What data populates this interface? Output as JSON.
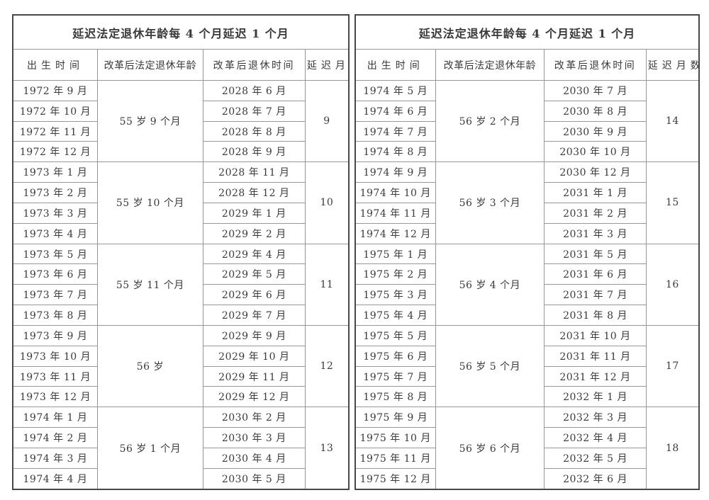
{
  "colors": {
    "background": "#ffffff",
    "outer_border": "#484848",
    "inner_border": "#979797",
    "text": "#3a3a3a"
  },
  "tables": [
    {
      "title": "延迟法定退休年龄每 4 个月延迟 1 个月",
      "columns": [
        "出生时间",
        "改革后法定退休年龄",
        "改革后退休时间",
        "延迟月数"
      ],
      "groups": [
        {
          "birth_months": [
            "1972 年 9 月",
            "1972 年 10 月",
            "1972 年 11 月",
            "1972 年 12 月"
          ],
          "retirement_age": "55 岁 9 个月",
          "retire_months": [
            "2028 年 6 月",
            "2028 年 7 月",
            "2028 年 8 月",
            "2028 年 9 月"
          ],
          "delay_months": "9"
        },
        {
          "birth_months": [
            "1973 年 1 月",
            "1973 年 2 月",
            "1973 年 3 月",
            "1973 年 4 月"
          ],
          "retirement_age": "55 岁 10 个月",
          "retire_months": [
            "2028 年 11 月",
            "2028 年 12 月",
            "2029 年 1 月",
            "2029 年 2 月"
          ],
          "delay_months": "10"
        },
        {
          "birth_months": [
            "1973 年 5 月",
            "1973 年 6 月",
            "1973 年 7 月",
            "1973 年 8 月"
          ],
          "retirement_age": "55 岁 11 个月",
          "retire_months": [
            "2029 年 4 月",
            "2029 年 5 月",
            "2029 年 6 月",
            "2029 年 7 月"
          ],
          "delay_months": "11"
        },
        {
          "birth_months": [
            "1973 年 9 月",
            "1973 年 10 月",
            "1973 年 11 月",
            "1973 年 12 月"
          ],
          "retirement_age": "56 岁",
          "retire_months": [
            "2029 年 9 月",
            "2029 年 10 月",
            "2029 年 11 月",
            "2029 年 12 月"
          ],
          "delay_months": "12"
        },
        {
          "birth_months": [
            "1974 年 1 月",
            "1974 年 2 月",
            "1974 年 3 月",
            "1974 年 4 月"
          ],
          "retirement_age": "56 岁 1 个月",
          "retire_months": [
            "2030 年 2 月",
            "2030 年 3 月",
            "2030 年 4 月",
            "2030 年 5 月"
          ],
          "delay_months": "13"
        }
      ]
    },
    {
      "title": "延迟法定退休年龄每 4 个月延迟 1 个月",
      "columns": [
        "出生时间",
        "改革后法定退休年龄",
        "改革后退休时间",
        "延迟月数"
      ],
      "groups": [
        {
          "birth_months": [
            "1974 年 5 月",
            "1974 年 6 月",
            "1974 年 7 月",
            "1974 年 8 月"
          ],
          "retirement_age": "56 岁 2 个月",
          "retire_months": [
            "2030 年 7 月",
            "2030 年 8 月",
            "2030 年 9 月",
            "2030 年 10 月"
          ],
          "delay_months": "14"
        },
        {
          "birth_months": [
            "1974 年 9 月",
            "1974 年 10 月",
            "1974 年 11 月",
            "1974 年 12 月"
          ],
          "retirement_age": "56 岁 3 个月",
          "retire_months": [
            "2030 年 12 月",
            "2031 年 1 月",
            "2031 年 2 月",
            "2031 年 3 月"
          ],
          "delay_months": "15"
        },
        {
          "birth_months": [
            "1975 年 1 月",
            "1975 年 2 月",
            "1975 年 3 月",
            "1975 年 4 月"
          ],
          "retirement_age": "56 岁 4 个月",
          "retire_months": [
            "2031 年 5 月",
            "2031 年 6 月",
            "2031 年 7 月",
            "2031 年 8 月"
          ],
          "delay_months": "16"
        },
        {
          "birth_months": [
            "1975 年 5 月",
            "1975 年 6 月",
            "1975 年 7 月",
            "1975 年 8 月"
          ],
          "retirement_age": "56 岁 5 个月",
          "retire_months": [
            "2031 年 10 月",
            "2031 年 11 月",
            "2031 年 12 月",
            "2032 年 1 月"
          ],
          "delay_months": "17"
        },
        {
          "birth_months": [
            "1975 年 9 月",
            "1975 年 10 月",
            "1975 年 11 月",
            "1975 年 12 月"
          ],
          "retirement_age": "56 岁 6 个月",
          "retire_months": [
            "2032 年 3 月",
            "2032 年 4 月",
            "2032 年 5 月",
            "2032 年 6 月"
          ],
          "delay_months": "18"
        }
      ]
    }
  ]
}
